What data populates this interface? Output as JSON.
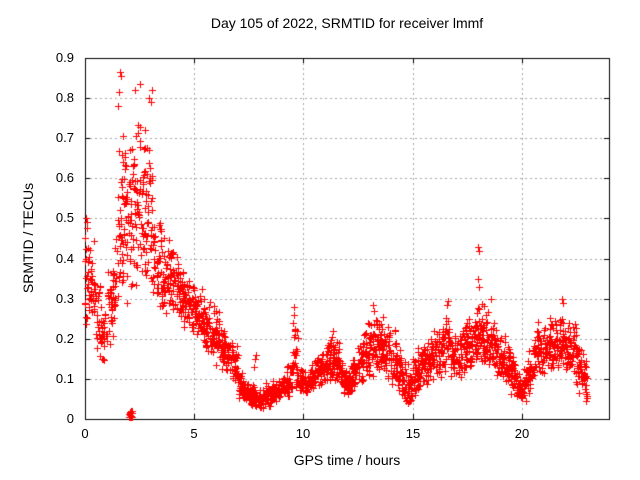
{
  "figure": {
    "background": "#ffffff"
  },
  "chart_data": {
    "type": "scatter",
    "title": "Day 105 of 2022, SRMTID for receiver lmmf",
    "xlabel": "GPS time / hours",
    "ylabel": "SRMTID / TECUs",
    "xlim": [
      0,
      24
    ],
    "ylim": [
      0,
      0.9
    ],
    "xticks": [
      0,
      5,
      10,
      15,
      20
    ],
    "xtick_labels": [
      "0",
      "5",
      "10",
      "15",
      "20"
    ],
    "yticks": [
      0,
      0.1,
      0.2,
      0.3,
      0.4,
      0.5,
      0.6,
      0.7,
      0.8,
      0.9
    ],
    "ytick_labels": [
      "0",
      "0.1",
      "0.2",
      "0.3",
      "0.4",
      "0.5",
      "0.6",
      "0.7",
      "0.8",
      "0.9"
    ],
    "grid": true,
    "legend": false,
    "marker": "plus",
    "colors": {
      "points": "#ff0000",
      "grid": "#a8a8a8",
      "axis": "#000000",
      "text": "#000000",
      "background": "#ffffff"
    },
    "band_width_hours": 0.25,
    "density_bands": [
      [
        0.0,
        0.21,
        0.51,
        26
      ],
      [
        0.25,
        0.2,
        0.46,
        26
      ],
      [
        0.5,
        0.15,
        0.35,
        22
      ],
      [
        0.75,
        0.14,
        0.3,
        22
      ],
      [
        1.0,
        0.17,
        0.38,
        24
      ],
      [
        1.25,
        0.2,
        0.48,
        26
      ],
      [
        1.5,
        0.25,
        0.72,
        30
      ],
      [
        1.75,
        0.28,
        0.76,
        30
      ],
      [
        2.0,
        0.3,
        0.79,
        30
      ],
      [
        2.25,
        0.3,
        0.78,
        28
      ],
      [
        2.5,
        0.3,
        0.8,
        30
      ],
      [
        2.75,
        0.28,
        0.76,
        28
      ],
      [
        3.0,
        0.27,
        0.62,
        26
      ],
      [
        3.25,
        0.25,
        0.52,
        26
      ],
      [
        3.5,
        0.24,
        0.48,
        26
      ],
      [
        3.75,
        0.27,
        0.46,
        26
      ],
      [
        4.0,
        0.27,
        0.46,
        26
      ],
      [
        4.25,
        0.24,
        0.41,
        26
      ],
      [
        4.5,
        0.22,
        0.39,
        26
      ],
      [
        4.75,
        0.2,
        0.39,
        26
      ],
      [
        5.0,
        0.2,
        0.34,
        26
      ],
      [
        5.25,
        0.18,
        0.33,
        26
      ],
      [
        5.5,
        0.16,
        0.31,
        26
      ],
      [
        5.75,
        0.15,
        0.29,
        26
      ],
      [
        6.0,
        0.13,
        0.27,
        26
      ],
      [
        6.25,
        0.12,
        0.23,
        26
      ],
      [
        6.5,
        0.1,
        0.21,
        26
      ],
      [
        6.75,
        0.09,
        0.19,
        26
      ],
      [
        7.0,
        0.05,
        0.14,
        26
      ],
      [
        7.25,
        0.04,
        0.1,
        26
      ],
      [
        7.5,
        0.03,
        0.09,
        26
      ],
      [
        7.75,
        0.025,
        0.08,
        26
      ],
      [
        8.0,
        0.025,
        0.08,
        26
      ],
      [
        8.25,
        0.03,
        0.09,
        26
      ],
      [
        8.5,
        0.04,
        0.1,
        26
      ],
      [
        8.75,
        0.04,
        0.1,
        26
      ],
      [
        9.0,
        0.05,
        0.11,
        26
      ],
      [
        9.25,
        0.05,
        0.15,
        26
      ],
      [
        9.5,
        0.07,
        0.27,
        26
      ],
      [
        9.75,
        0.06,
        0.14,
        26
      ],
      [
        10.0,
        0.06,
        0.12,
        26
      ],
      [
        10.25,
        0.07,
        0.14,
        26
      ],
      [
        10.5,
        0.08,
        0.16,
        26
      ],
      [
        10.75,
        0.08,
        0.18,
        26
      ],
      [
        11.0,
        0.08,
        0.2,
        26
      ],
      [
        11.25,
        0.07,
        0.22,
        26
      ],
      [
        11.5,
        0.07,
        0.2,
        26
      ],
      [
        11.75,
        0.06,
        0.15,
        26
      ],
      [
        12.0,
        0.06,
        0.14,
        26
      ],
      [
        12.25,
        0.07,
        0.16,
        26
      ],
      [
        12.5,
        0.08,
        0.2,
        26
      ],
      [
        12.75,
        0.1,
        0.25,
        26
      ],
      [
        13.0,
        0.1,
        0.28,
        26
      ],
      [
        13.25,
        0.1,
        0.28,
        26
      ],
      [
        13.5,
        0.1,
        0.26,
        26
      ],
      [
        13.75,
        0.1,
        0.25,
        26
      ],
      [
        14.0,
        0.08,
        0.23,
        26
      ],
      [
        14.25,
        0.06,
        0.19,
        26
      ],
      [
        14.5,
        0.04,
        0.16,
        26
      ],
      [
        14.75,
        0.03,
        0.14,
        26
      ],
      [
        15.0,
        0.05,
        0.16,
        26
      ],
      [
        15.25,
        0.07,
        0.18,
        26
      ],
      [
        15.5,
        0.08,
        0.2,
        26
      ],
      [
        15.75,
        0.09,
        0.22,
        26
      ],
      [
        16.0,
        0.1,
        0.23,
        26
      ],
      [
        16.25,
        0.1,
        0.25,
        26
      ],
      [
        16.5,
        0.12,
        0.29,
        26
      ],
      [
        16.75,
        0.1,
        0.24,
        26
      ],
      [
        17.0,
        0.1,
        0.23,
        26
      ],
      [
        17.25,
        0.1,
        0.26,
        26
      ],
      [
        17.5,
        0.12,
        0.28,
        26
      ],
      [
        17.75,
        0.14,
        0.31,
        26
      ],
      [
        18.0,
        0.14,
        0.31,
        28
      ],
      [
        18.25,
        0.12,
        0.29,
        26
      ],
      [
        18.5,
        0.12,
        0.28,
        26
      ],
      [
        18.75,
        0.1,
        0.24,
        26
      ],
      [
        19.0,
        0.1,
        0.22,
        26
      ],
      [
        19.25,
        0.08,
        0.19,
        26
      ],
      [
        19.5,
        0.06,
        0.17,
        26
      ],
      [
        19.75,
        0.04,
        0.14,
        26
      ],
      [
        20.0,
        0.03,
        0.13,
        26
      ],
      [
        20.25,
        0.06,
        0.17,
        26
      ],
      [
        20.5,
        0.09,
        0.25,
        26
      ],
      [
        20.75,
        0.1,
        0.26,
        26
      ],
      [
        21.0,
        0.11,
        0.25,
        26
      ],
      [
        21.25,
        0.12,
        0.26,
        26
      ],
      [
        21.5,
        0.12,
        0.28,
        28
      ],
      [
        21.75,
        0.13,
        0.28,
        28
      ],
      [
        22.0,
        0.12,
        0.26,
        26
      ],
      [
        22.25,
        0.1,
        0.25,
        26
      ],
      [
        22.5,
        0.06,
        0.21,
        26
      ],
      [
        22.75,
        0.03,
        0.18,
        24
      ]
    ],
    "notable_points": [
      [
        0.05,
        0.5
      ],
      [
        0.1,
        0.49
      ],
      [
        0.07,
        0.475
      ],
      [
        1.6,
        0.865
      ],
      [
        1.63,
        0.855
      ],
      [
        1.57,
        0.815
      ],
      [
        1.52,
        0.78
      ],
      [
        2.52,
        0.835
      ],
      [
        2.3,
        0.82
      ],
      [
        3.05,
        0.82
      ],
      [
        2.95,
        0.8
      ],
      [
        3.0,
        0.79
      ],
      [
        5.35,
        0.325
      ],
      [
        7.8,
        0.15
      ],
      [
        7.85,
        0.16
      ],
      [
        7.75,
        0.13
      ],
      [
        9.55,
        0.28
      ],
      [
        9.58,
        0.26
      ],
      [
        9.52,
        0.24
      ],
      [
        9.6,
        0.22
      ],
      [
        11.35,
        0.22
      ],
      [
        13.2,
        0.285
      ],
      [
        13.25,
        0.27
      ],
      [
        16.62,
        0.295
      ],
      [
        16.58,
        0.285
      ],
      [
        18.02,
        0.43
      ],
      [
        18.06,
        0.42
      ],
      [
        18.02,
        0.35
      ],
      [
        18.06,
        0.33
      ],
      [
        18.6,
        0.3
      ],
      [
        21.85,
        0.3
      ],
      [
        21.9,
        0.29
      ],
      [
        2.0,
        0.005
      ],
      [
        2.02,
        0.012
      ],
      [
        2.04,
        0.018
      ],
      [
        2.06,
        0.006
      ],
      [
        2.08,
        0.014
      ],
      [
        2.1,
        0.02
      ],
      [
        2.12,
        0.008
      ],
      [
        2.14,
        0.015
      ],
      [
        2.16,
        0.005
      ],
      [
        2.05,
        0.01
      ],
      [
        2.09,
        0.004
      ],
      [
        2.13,
        0.019
      ]
    ]
  }
}
